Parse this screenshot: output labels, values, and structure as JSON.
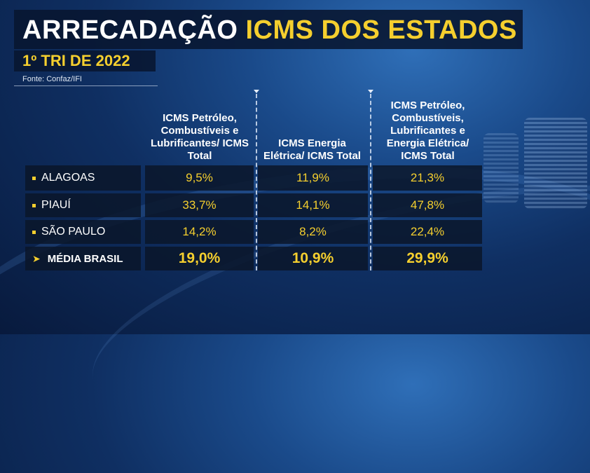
{
  "header": {
    "title_part1": "ARRECADAÇÃO",
    "title_part2": "ICMS DOS ESTADOS",
    "subtitle": "1º TRI DE 2022",
    "source": "Fonte: Confaz/IFI"
  },
  "table": {
    "columns": [
      "ICMS Petróleo, Combustíveis e Lubrificantes/ ICMS Total",
      "ICMS Energia Elétrica/ ICMS Total",
      "ICMS Petróleo, Combustíveis, Lubrificantes e Energia Elétrica/ ICMS Total"
    ],
    "rows": [
      {
        "label": "ALAGOAS",
        "values": [
          "9,5%",
          "11,9%",
          "21,3%"
        ]
      },
      {
        "label": "PIAUÍ",
        "values": [
          "33,7%",
          "14,1%",
          "47,8%"
        ]
      },
      {
        "label": "SÃO PAULO",
        "values": [
          "14,2%",
          "8,2%",
          "22,4%"
        ]
      }
    ],
    "average": {
      "label": "MÉDIA BRASIL",
      "values": [
        "19,0%",
        "10,9%",
        "29,9%"
      ]
    }
  },
  "colors": {
    "accent_yellow": "#f5cf2e",
    "cell_background": "#0a162a",
    "background_blue": "#1a4a8a"
  }
}
